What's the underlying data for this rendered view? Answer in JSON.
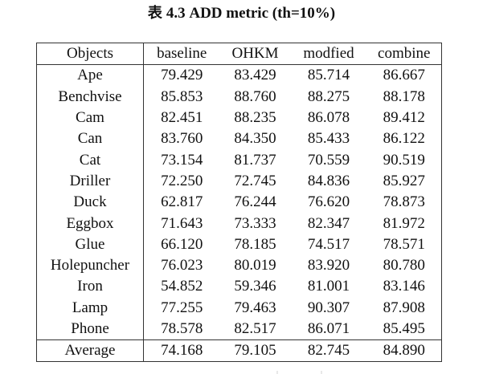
{
  "caption": {
    "prefix": "表",
    "text": "4.3 ADD metric (th=10%)"
  },
  "table": {
    "headers": [
      "Objects",
      "baseline",
      "OHKM",
      "modfied",
      "combine"
    ],
    "rows": [
      [
        "Ape",
        "79.429",
        "83.429",
        "85.714",
        "86.667"
      ],
      [
        "Benchvise",
        "85.853",
        "88.760",
        "88.275",
        "88.178"
      ],
      [
        "Cam",
        "82.451",
        "88.235",
        "86.078",
        "89.412"
      ],
      [
        "Can",
        "83.760",
        "84.350",
        "85.433",
        "86.122"
      ],
      [
        "Cat",
        "73.154",
        "81.737",
        "70.559",
        "90.519"
      ],
      [
        "Driller",
        "72.250",
        "72.745",
        "84.836",
        "85.927"
      ],
      [
        "Duck",
        "62.817",
        "76.244",
        "76.620",
        "78.873"
      ],
      [
        "Eggbox",
        "71.643",
        "73.333",
        "82.347",
        "81.972"
      ],
      [
        "Glue",
        "66.120",
        "78.185",
        "74.517",
        "78.571"
      ],
      [
        "Holepuncher",
        "76.023",
        "80.019",
        "83.920",
        "80.780"
      ],
      [
        "Iron",
        "54.852",
        "59.346",
        "81.001",
        "83.146"
      ],
      [
        "Lamp",
        "77.255",
        "79.463",
        "90.307",
        "87.908"
      ],
      [
        "Phone",
        "78.578",
        "82.517",
        "86.071",
        "85.495"
      ]
    ],
    "average": [
      "Average",
      "74.168",
      "79.105",
      "82.745",
      "84.890"
    ]
  }
}
